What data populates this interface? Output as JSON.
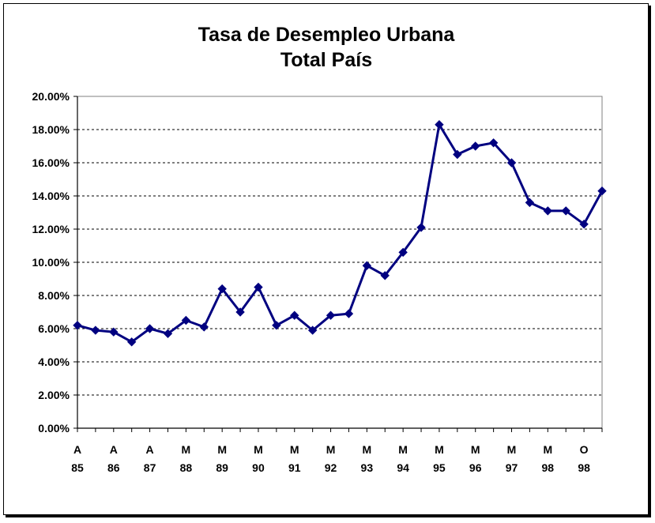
{
  "chart_data": {
    "type": "line",
    "title": "Tasa de Desempleo Urbana",
    "subtitle": "Total País",
    "xlabel": "",
    "ylabel": "",
    "ylim": [
      0,
      20
    ],
    "y_ticks": [
      "0.00%",
      "2.00%",
      "4.00%",
      "6.00%",
      "8.00%",
      "10.00%",
      "12.00%",
      "14.00%",
      "16.00%",
      "18.00%",
      "20.00%"
    ],
    "x_tick_labels": [
      {
        "index": 0,
        "line1": "A",
        "line2": "85"
      },
      {
        "index": 2,
        "line1": "A",
        "line2": "86"
      },
      {
        "index": 4,
        "line1": "A",
        "line2": "87"
      },
      {
        "index": 6,
        "line1": "M",
        "line2": "88"
      },
      {
        "index": 8,
        "line1": "M",
        "line2": "89"
      },
      {
        "index": 10,
        "line1": "M",
        "line2": "90"
      },
      {
        "index": 12,
        "line1": "M",
        "line2": "91"
      },
      {
        "index": 14,
        "line1": "M",
        "line2": "92"
      },
      {
        "index": 16,
        "line1": "M",
        "line2": "93"
      },
      {
        "index": 18,
        "line1": "M",
        "line2": "94"
      },
      {
        "index": 20,
        "line1": "M",
        "line2": "95"
      },
      {
        "index": 22,
        "line1": "M",
        "line2": "96"
      },
      {
        "index": 24,
        "line1": "M",
        "line2": "97"
      },
      {
        "index": 26,
        "line1": "M",
        "line2": "98"
      },
      {
        "index": 28,
        "line1": "O",
        "line2": "98"
      }
    ],
    "grid": true,
    "legend": "none",
    "series": [
      {
        "color": "#000080",
        "values": [
          6.2,
          5.9,
          5.8,
          5.2,
          6.0,
          5.7,
          6.5,
          6.1,
          8.4,
          7.0,
          8.5,
          6.2,
          6.8,
          5.9,
          6.8,
          6.9,
          9.8,
          9.2,
          10.6,
          12.1,
          18.3,
          16.5,
          17.0,
          17.2,
          16.0,
          13.6,
          13.1,
          13.1,
          12.3,
          14.3
        ]
      }
    ]
  }
}
